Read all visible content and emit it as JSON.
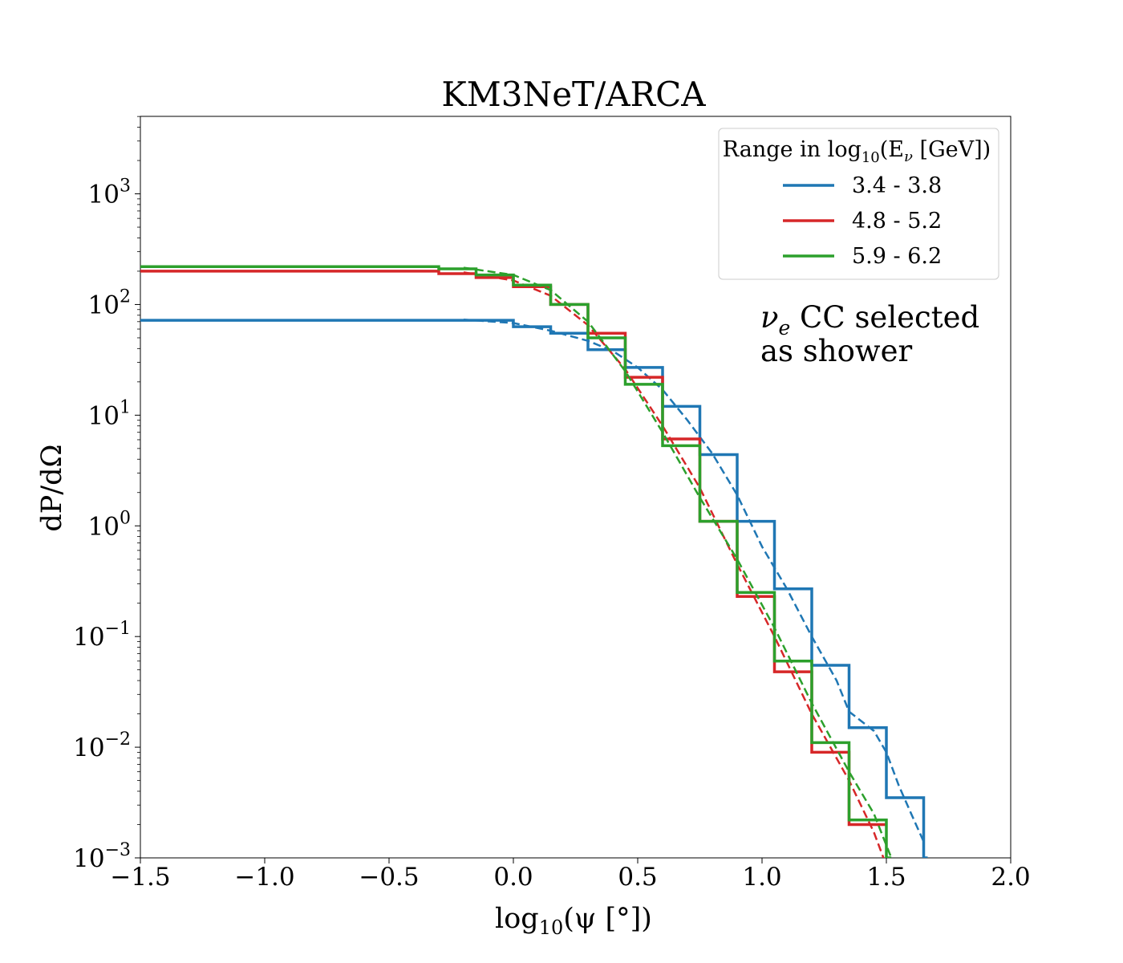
{
  "chart_data": {
    "type": "line",
    "title": "KM3NeT/ARCA",
    "xlabel": "log10(ψ [°])",
    "ylabel": "dP/dΩ",
    "xlim": [
      -1.5,
      2.0
    ],
    "ylim_log10": [
      -3,
      3.7
    ],
    "y_scale": "log",
    "x_ticks": [
      -1.5,
      -1.0,
      -0.5,
      0.0,
      0.5,
      1.0,
      1.5,
      2.0
    ],
    "x_tick_labels": [
      "−1.5",
      "−1.0",
      "−0.5",
      "0.0",
      "0.5",
      "1.0",
      "1.5",
      "2.0"
    ],
    "y_ticks_exp": [
      -3,
      -2,
      -1,
      0,
      1,
      2,
      3
    ],
    "y_tick_labels": [
      "10",
      "10",
      "10",
      "10",
      "10",
      "10",
      "10"
    ],
    "y_tick_exponents": [
      "−3",
      "−2",
      "−1",
      "0",
      "1",
      "2",
      "3"
    ],
    "legend": {
      "title_prefix": "Range in log",
      "title_sub": "10",
      "title_suffix": "(E",
      "title_nu": "ν",
      "title_unit": " [GeV])",
      "placement": "top-right"
    },
    "annotation_line1": "νe CC selected",
    "annotation_nu": "ν",
    "annotation_nu_sub": "e",
    "annotation_rest": " CC selected",
    "annotation_line2": "as shower",
    "series": [
      {
        "name": "3.4 - 3.8",
        "color": "#1f77b4",
        "step_edges": [
          -1.5,
          -0.3,
          -0.15,
          0.0,
          0.15,
          0.3,
          0.45,
          0.6,
          0.75,
          0.9,
          1.05,
          1.2,
          1.35,
          1.5,
          1.65,
          1.666
        ],
        "step_values": [
          72,
          72,
          72,
          63,
          55,
          39,
          27,
          12,
          4.4,
          1.1,
          0.27,
          0.055,
          0.015,
          0.0035,
          0.001
        ],
        "fit_x": [
          -0.2,
          0.0,
          0.15,
          0.3,
          0.4,
          0.5,
          0.6,
          0.7,
          0.8,
          0.9,
          1.0,
          1.1,
          1.2,
          1.3,
          1.35,
          1.45,
          1.5,
          1.55,
          1.6,
          1.65
        ],
        "fit_y": [
          73,
          68,
          58,
          47,
          38,
          27,
          17,
          9,
          4.5,
          1.9,
          0.65,
          0.27,
          0.1,
          0.04,
          0.021,
          0.014,
          0.009,
          0.0045,
          0.0025,
          0.0014
        ]
      },
      {
        "name": "4.8 - 5.2",
        "color": "#d62728",
        "step_edges": [
          -1.5,
          -0.3,
          -0.15,
          0.0,
          0.15,
          0.3,
          0.45,
          0.6,
          0.75,
          0.9,
          1.05,
          1.2,
          1.35,
          1.5
        ],
        "step_values": [
          200,
          190,
          175,
          145,
          100,
          55,
          22,
          6.1,
          1.1,
          0.23,
          0.048,
          0.009,
          0.002
        ],
        "fit_x": [
          -0.2,
          0.0,
          0.15,
          0.3,
          0.45,
          0.6,
          0.75,
          0.9,
          1.05,
          1.2,
          1.35,
          1.45,
          1.5
        ],
        "fit_y": [
          195,
          165,
          120,
          65,
          26,
          8,
          2.2,
          0.45,
          0.1,
          0.02,
          0.005,
          0.0017,
          0.00085
        ]
      },
      {
        "name": "5.9 - 6.2",
        "color": "#2ca02c",
        "step_edges": [
          -1.5,
          -0.3,
          -0.15,
          0.0,
          0.15,
          0.3,
          0.45,
          0.6,
          0.75,
          0.9,
          1.05,
          1.2,
          1.35,
          1.5,
          1.52
        ],
        "step_values": [
          220,
          210,
          185,
          150,
          100,
          50,
          19,
          5.3,
          1.1,
          0.25,
          0.06,
          0.011,
          0.0022,
          0.001
        ],
        "fit_x": [
          -0.2,
          0.0,
          0.15,
          0.3,
          0.45,
          0.6,
          0.75,
          0.9,
          1.05,
          1.2,
          1.35,
          1.45,
          1.52
        ],
        "fit_y": [
          215,
          185,
          135,
          70,
          25,
          7,
          1.8,
          0.5,
          0.12,
          0.025,
          0.006,
          0.0025,
          0.001
        ]
      }
    ]
  }
}
